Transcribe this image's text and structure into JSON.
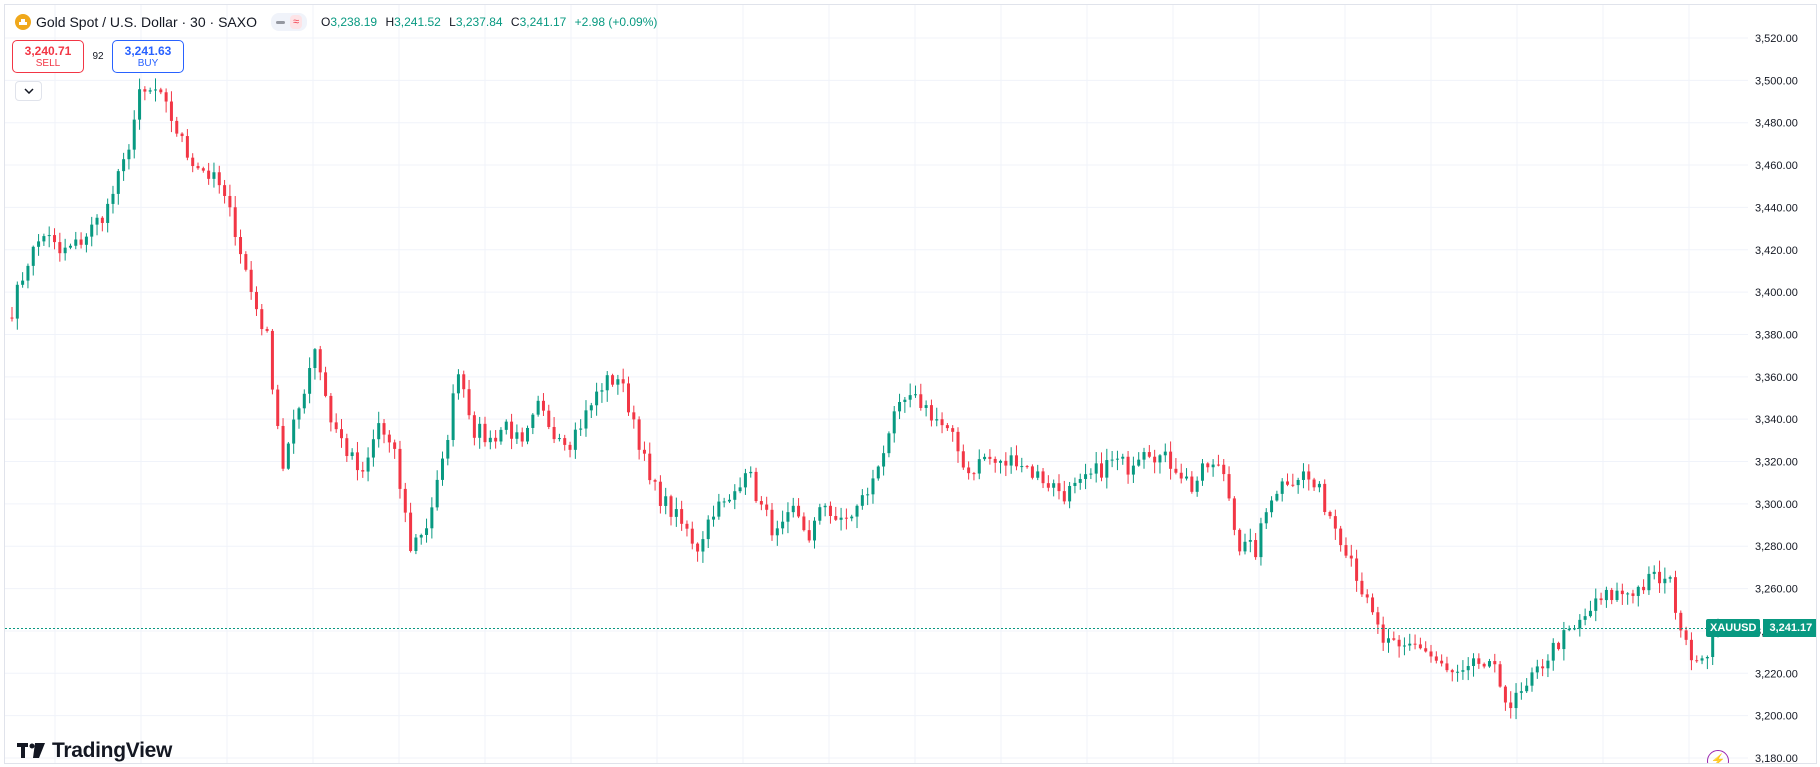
{
  "legend": {
    "symbol_title": "Gold Spot / U.S. Dollar · 30 · SAXO",
    "symbol_icon": "gold-coin-icon",
    "open_key": "O",
    "open_val": "3,238.19",
    "high_key": "H",
    "high_val": "3,241.52",
    "low_key": "L",
    "low_val": "3,237.84",
    "close_key": "C",
    "close_val": "3,241.17",
    "change": "+2.98 (+0.09%)"
  },
  "trade": {
    "sell_price": "3,240.71",
    "sell_label": "SELL",
    "spread": "92",
    "buy_price": "3,241.63",
    "buy_label": "BUY"
  },
  "watermark": "TradingView",
  "last_price": {
    "symbol": "XAUUSD",
    "value": "3,241.17"
  },
  "colors": {
    "up": "#089981",
    "down": "#f23645",
    "grid": "#f0f3fa",
    "axis_text": "#131722"
  },
  "chart_data": {
    "type": "candlestick",
    "interval": "30",
    "y_axis_ticks": [
      "3,520.00",
      "3,500.00",
      "3,480.00",
      "3,460.00",
      "3,440.00",
      "3,420.00",
      "3,400.00",
      "3,380.00",
      "3,360.00",
      "3,340.00",
      "3,320.00",
      "3,300.00",
      "3,280.00",
      "3,260.00",
      "3,240.00",
      "3,220.00",
      "3,200.00",
      "3,180.00"
    ],
    "ylim": [
      3180,
      3520
    ],
    "last_close": 3241.17,
    "path": [
      3392,
      3415,
      3428,
      3418,
      3422,
      3430,
      3440,
      3460,
      3492,
      3495,
      3482,
      3465,
      3458,
      3450,
      3430,
      3400,
      3378,
      3318,
      3345,
      3375,
      3340,
      3325,
      3312,
      3338,
      3322,
      3280,
      3290,
      3318,
      3365,
      3335,
      3330,
      3338,
      3326,
      3345,
      3335,
      3330,
      3342,
      3356,
      3360,
      3340,
      3310,
      3300,
      3290,
      3280,
      3298,
      3300,
      3318,
      3298,
      3285,
      3295,
      3285,
      3300,
      3290,
      3298,
      3310,
      3335,
      3348,
      3348,
      3340,
      3330,
      3315,
      3322,
      3318,
      3322,
      3315,
      3310,
      3305,
      3308,
      3315,
      3320,
      3318,
      3328,
      3322,
      3318,
      3308,
      3318,
      3315,
      3280,
      3278,
      3305,
      3312,
      3314,
      3305,
      3290,
      3275,
      3252,
      3235,
      3230,
      3235,
      3228,
      3220,
      3218,
      3225,
      3220,
      3205,
      3212,
      3225,
      3235,
      3240,
      3250,
      3256,
      3258,
      3260,
      3265,
      3262,
      3232,
      3228,
      3240
    ],
    "bars_per_segment": 3
  }
}
